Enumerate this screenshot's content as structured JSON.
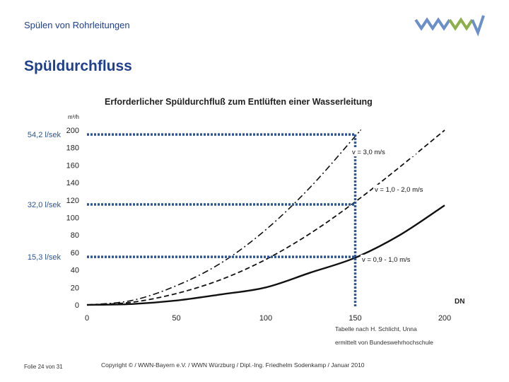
{
  "header": {
    "subtitle": "Spülen von Rohrleitungen",
    "logo": "wwn-logo"
  },
  "page": {
    "title": "Spüldurchfluss"
  },
  "chart_data": {
    "type": "line",
    "title": "Erforderlicher Spüldurchfluß zum Entlüften einer Wasserleitung",
    "ylabel": "m³/h",
    "xlabel": "DN",
    "xlim": [
      0,
      200
    ],
    "ylim": [
      0,
      200
    ],
    "x_ticks": [
      "0",
      "50",
      "100",
      "150",
      "200"
    ],
    "y_ticks": [
      "0",
      "20",
      "40",
      "60",
      "80",
      "100",
      "120",
      "140",
      "160",
      "180",
      "200"
    ],
    "grid": false,
    "series": [
      {
        "name": "v = 0,9 - 1,0 m/s",
        "style": "solid",
        "x": [
          0,
          25,
          50,
          75,
          100,
          125,
          150,
          175,
          200
        ],
        "y": [
          0,
          1,
          5,
          12,
          20,
          37,
          54,
          80,
          114
        ]
      },
      {
        "name": "v = 1,0 - 2,0 m/s",
        "style": "dashed",
        "x": [
          0,
          25,
          50,
          75,
          100,
          125,
          150,
          175,
          200
        ],
        "y": [
          0,
          3,
          13,
          29,
          52,
          82,
          118,
          158,
          200
        ]
      },
      {
        "name": "v = 3,0 m/s",
        "style": "dashdot",
        "x": [
          0,
          25,
          50,
          75,
          100,
          125,
          150,
          153
        ],
        "y": [
          0,
          5,
          22,
          48,
          86,
          135,
          193,
          200
        ]
      }
    ],
    "annotations": [
      {
        "label": "54,2 l/sek",
        "y": 195,
        "x_end": 150
      },
      {
        "label": "32,0 l/sek",
        "y": 115,
        "x_end": 150
      },
      {
        "label": "15,3 l/sek",
        "y": 55,
        "x_end": 150
      }
    ],
    "annotation_color": "#2b5597",
    "source_note": [
      "Tabelle nach H. Schlicht, Unna",
      "ermittelt von Bundeswehrhochschule"
    ]
  },
  "footer": {
    "slide_number": "Folie 24 von 31",
    "copyright": "Copyright © / WWN-Bayern e.V. / WWN Würzburg / Dipl.-Ing. Friedhelm Sodenkamp / Januar 2010"
  }
}
